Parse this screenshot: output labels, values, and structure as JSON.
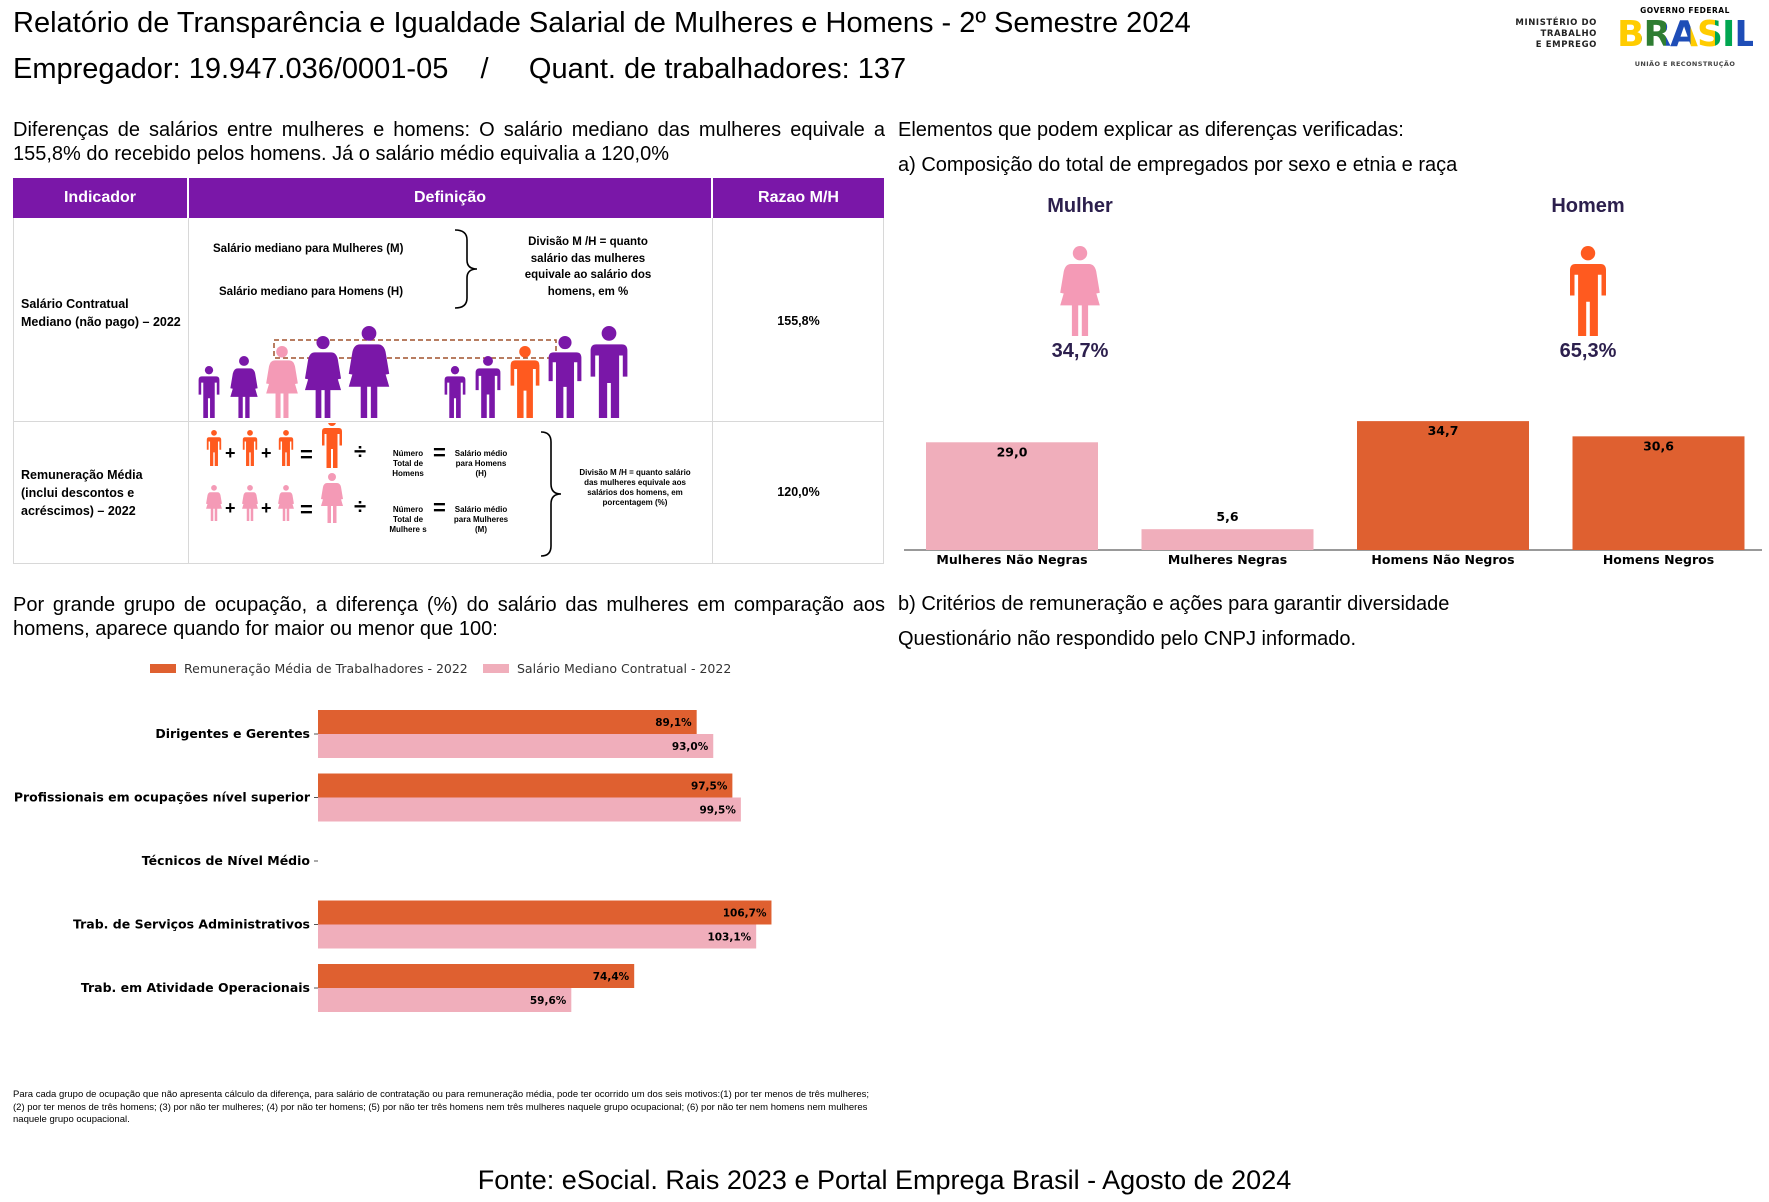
{
  "header": {
    "title": "Relatório de Transparência e Igualdade Salarial de Mulheres e Homens - 2º Semestre 2024",
    "employer_line": "Empregador: 19.947.036/0001-05    /     Quant. de trabalhadores: 137",
    "logo_ministry": [
      "MINISTÉRIO DO",
      "TRABALHO",
      "E EMPREGO"
    ],
    "logo_gov_top": "GOVERNO FEDERAL",
    "logo_gov_word": "BRASIL",
    "logo_gov_bottom": "UNIÃO E RECONSTRUÇÃO"
  },
  "salary_diff": {
    "text": "Diferenças de salários entre mulheres e homens: O salário mediano das mulheres equivale a 155,8% do recebido pelos homens. Já o salário médio equivalia a 120,0%",
    "table": {
      "headers": [
        "Indicador",
        "Definição",
        "Razao M/H"
      ],
      "row1": {
        "indicator": "Salário Contratual Mediano (não pago) – 2022",
        "def_women": "Salário mediano para Mulheres (M)",
        "def_men": "Salário mediano para Homens (H)",
        "def_division": "Divisão M /H = quanto salário das mulheres equivale ao salário dos homens, em %",
        "ratio": "155,8%"
      },
      "row2": {
        "indicator": "Remuneração Média (inclui descontos e acréscimos) – 2022",
        "men_total": "Número Total de Homens",
        "men_avg": "Salário médio para Homens (H)",
        "women_total": "Número Total de Mulhere s",
        "women_avg": "Salário médio para Mulheres (M)",
        "def_division": "Divisão M /H = quanto salário das mulheres equivale aos salários dos homens, em porcentagem (%)",
        "ratio": "120,0%",
        "op_plus": "+",
        "op_div": "÷",
        "op_eq": "="
      }
    }
  },
  "composition": {
    "title": "Elementos que podem explicar as diferenças verificadas:",
    "subtitle": "a) Composição do total de empregados por sexo e etnia e raça",
    "woman_label": "Mulher",
    "woman_pct": "34,7%",
    "man_label": "Homem",
    "man_pct": "65,3%"
  },
  "occupation": {
    "text": "Por grande grupo de ocupação, a diferença (%) do salário das mulheres em comparação aos homens, aparece quando for maior ou menor que 100:"
  },
  "criteria": {
    "title": "b) Critérios de remuneração e ações para garantir diversidade",
    "text": "Questionário não respondido pelo CNPJ informado."
  },
  "footnote": "Para cada grupo de ocupação que não apresenta cálculo da diferença, para salário de contratação ou para remuneração média, pode ter ocorrido um dos seis motivos:(1) por ter menos de três mulheres; (2) por ter menos de três homens; (3) por não ter mulheres; (4) por não ter homens; (5) por não ter três homens nem três mulheres naquele grupo ocupacional; (6) por não ter nem homens nem mulheres naquele grupo ocupacional.",
  "source": "Fonte: eSocial. Rais 2023 e Portal Emprega Brasil - Agosto de 2024",
  "colors": {
    "purple": "#7a17a8",
    "pink": "#f0aebb",
    "orange": "#df6030",
    "icon_pink": "#f49ab6",
    "icon_orange": "#ff5a1f",
    "dark_text": "#2c1f4d"
  },
  "chart_data": [
    {
      "type": "bar",
      "categories": [
        "Mulheres Não Negras",
        "Mulheres Negras",
        "Homens Não Negros",
        "Homens Negros"
      ],
      "values": [
        29.0,
        5.6,
        34.7,
        30.6
      ],
      "value_labels": [
        "29,0",
        "5,6",
        "34,7",
        "30,6"
      ],
      "ylim": [
        0,
        35
      ],
      "grid": false
    },
    {
      "type": "bar",
      "orientation": "horizontal",
      "categories": [
        "Dirigentes e Gerentes",
        "Profissionais em ocupações nível superior",
        "Técnicos de Nível Médio",
        "Trab. de Serviços Administrativos",
        "Trab. em Atividade Operacionais"
      ],
      "series": [
        {
          "name": "Remuneração Média de Trabalhadores - 2022",
          "values": [
            89.1,
            97.5,
            null,
            106.7,
            74.4
          ],
          "labels": [
            "89,1%",
            "97,5%",
            "",
            "106,7%",
            "74,4%"
          ]
        },
        {
          "name": "Salário Mediano Contratual - 2022",
          "values": [
            93.0,
            99.5,
            null,
            103.1,
            59.6
          ],
          "labels": [
            "93,0%",
            "99,5%",
            "",
            "103,1%",
            "59,6%"
          ]
        }
      ],
      "xlim": [
        0,
        110
      ],
      "legend": "top",
      "grid": false
    }
  ]
}
